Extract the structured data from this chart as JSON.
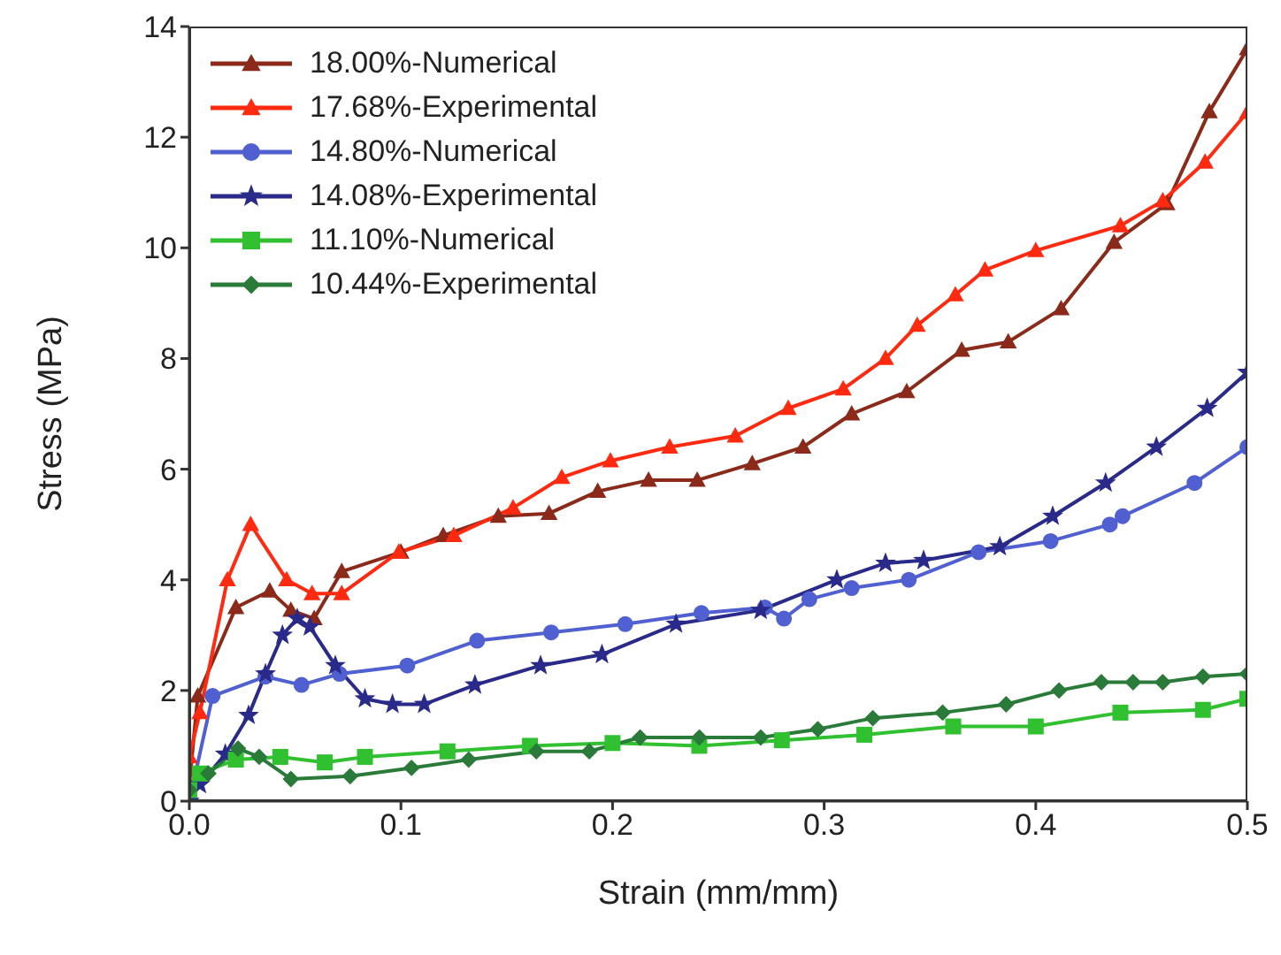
{
  "chart_data": {
    "type": "line",
    "xlabel": "Strain (mm/mm)",
    "ylabel": "Stress (MPa)",
    "xlim": [
      0,
      0.5
    ],
    "ylim": [
      0,
      14
    ],
    "xticks": [
      {
        "value": 0,
        "label": "0.0"
      },
      {
        "value": 0.1,
        "label": "0.1"
      },
      {
        "value": 0.2,
        "label": "0.2"
      },
      {
        "value": 0.3,
        "label": "0.3"
      },
      {
        "value": 0.4,
        "label": "0.4"
      },
      {
        "value": 0.5,
        "label": "0.5"
      }
    ],
    "yticks": [
      0,
      2,
      4,
      6,
      8,
      10,
      12,
      14
    ],
    "grid": false,
    "legend": "top left",
    "line_style": "solid",
    "series": [
      {
        "name": "18.00%-Numerical",
        "color": "#8b2a1a",
        "marker": "triangle",
        "x": [
          0,
          0.004,
          0.022,
          0.038,
          0.048,
          0.059,
          0.072,
          0.1,
          0.12,
          0.146,
          0.17,
          0.193,
          0.217,
          0.24,
          0.266,
          0.29,
          0.313,
          0.339,
          0.365,
          0.387,
          0.412,
          0.437,
          0.462,
          0.482,
          0.5
        ],
        "values": [
          0.3,
          1.9,
          3.5,
          3.8,
          3.45,
          3.3,
          4.15,
          4.5,
          4.8,
          5.15,
          5.2,
          5.6,
          5.8,
          5.8,
          6.1,
          6.4,
          7.0,
          7.4,
          8.15,
          8.3,
          8.9,
          10.1,
          10.8,
          12.46,
          13.6
        ]
      },
      {
        "name": "17.68%-Experimental",
        "color": "#ff2a10",
        "marker": "triangle",
        "x": [
          0,
          0.005,
          0.018,
          0.029,
          0.046,
          0.058,
          0.072,
          0.099,
          0.125,
          0.153,
          0.176,
          0.199,
          0.227,
          0.258,
          0.283,
          0.309,
          0.329,
          0.344,
          0.362,
          0.376,
          0.4,
          0.44,
          0.46,
          0.48,
          0.5
        ],
        "values": [
          0.8,
          1.6,
          4.0,
          5.0,
          4.0,
          3.75,
          3.75,
          4.5,
          4.8,
          5.3,
          5.85,
          6.15,
          6.4,
          6.6,
          7.1,
          7.45,
          8.0,
          8.6,
          9.15,
          9.6,
          9.95,
          10.4,
          10.85,
          11.55,
          12.45
        ]
      },
      {
        "name": "14.80%-Numerical",
        "color": "#5060d0",
        "marker": "circle",
        "x": [
          0,
          0.011,
          0.036,
          0.053,
          0.071,
          0.103,
          0.136,
          0.171,
          0.206,
          0.242,
          0.272,
          0.281,
          0.293,
          0.313,
          0.34,
          0.373,
          0.407,
          0.435,
          0.441,
          0.475,
          0.5
        ],
        "values": [
          0,
          1.9,
          2.25,
          2.1,
          2.3,
          2.45,
          2.9,
          3.05,
          3.2,
          3.4,
          3.5,
          3.3,
          3.65,
          3.85,
          4.0,
          4.5,
          4.7,
          5.0,
          5.15,
          5.75,
          6.4
        ]
      },
      {
        "name": "14.08%-Experimental",
        "color": "#2a2a8a",
        "marker": "star",
        "x": [
          0,
          0.005,
          0.017,
          0.028,
          0.036,
          0.044,
          0.051,
          0.057,
          0.069,
          0.083,
          0.096,
          0.111,
          0.135,
          0.166,
          0.195,
          0.23,
          0.27,
          0.306,
          0.329,
          0.347,
          0.383,
          0.408,
          0.433,
          0.457,
          0.481,
          0.5
        ],
        "values": [
          0,
          0.3,
          0.85,
          1.55,
          2.3,
          3.0,
          3.3,
          3.15,
          2.45,
          1.85,
          1.75,
          1.75,
          2.1,
          2.45,
          2.65,
          3.2,
          3.45,
          4.0,
          4.3,
          4.35,
          4.6,
          5.15,
          5.75,
          6.4,
          7.1,
          7.75
        ]
      },
      {
        "name": "11.10%-Numerical",
        "color": "#30c030",
        "marker": "square",
        "x": [
          0,
          0.005,
          0.022,
          0.043,
          0.064,
          0.083,
          0.122,
          0.161,
          0.2,
          0.241,
          0.28,
          0.319,
          0.361,
          0.4,
          0.44,
          0.479,
          0.5
        ],
        "values": [
          0.2,
          0.5,
          0.75,
          0.8,
          0.7,
          0.8,
          0.9,
          1.0,
          1.05,
          1.0,
          1.1,
          1.2,
          1.35,
          1.35,
          1.6,
          1.65,
          1.85
        ]
      },
      {
        "name": "10.44%-Experimental",
        "color": "#2a7a3a",
        "marker": "diamond",
        "x": [
          0,
          0.009,
          0.023,
          0.033,
          0.048,
          0.076,
          0.105,
          0.132,
          0.164,
          0.189,
          0.213,
          0.241,
          0.27,
          0.297,
          0.323,
          0.356,
          0.386,
          0.411,
          0.431,
          0.446,
          0.46,
          0.479,
          0.5
        ],
        "values": [
          0.2,
          0.5,
          0.95,
          0.8,
          0.4,
          0.45,
          0.6,
          0.75,
          0.9,
          0.9,
          1.15,
          1.15,
          1.15,
          1.3,
          1.5,
          1.6,
          1.75,
          2.0,
          2.15,
          2.15,
          2.15,
          2.25,
          2.3
        ]
      }
    ]
  }
}
